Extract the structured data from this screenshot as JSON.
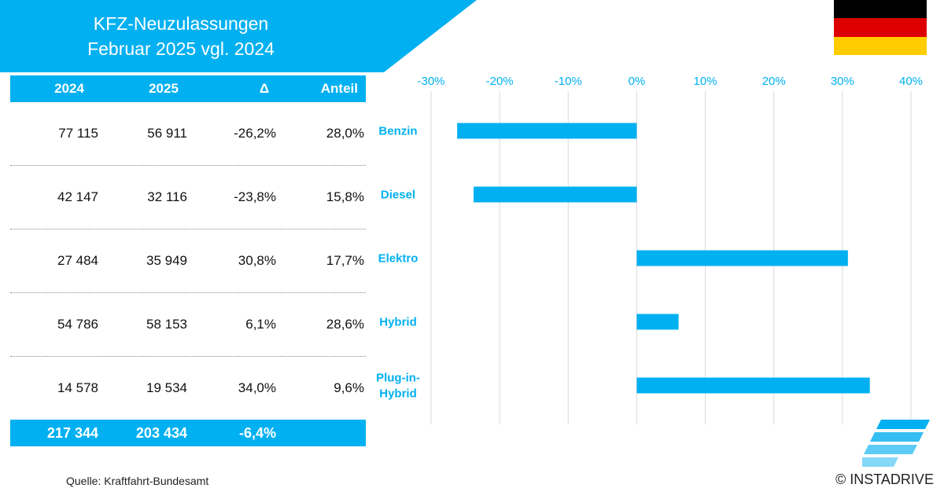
{
  "header": {
    "title_line1": "KFZ-Neuzulassungen",
    "title_line2": "Februar 2025 vgl. 2024"
  },
  "colors": {
    "accent": "#00b0f0",
    "flag_black": "#000000",
    "flag_red": "#dd0000",
    "flag_gold": "#ffcc00"
  },
  "table": {
    "headers": [
      "2024",
      "2025",
      "Δ",
      "Anteil"
    ],
    "rows": [
      [
        "77 115",
        "56 911",
        "-26,2%",
        "28,0%"
      ],
      [
        "42 147",
        "32 116",
        "-23,8%",
        "15,8%"
      ],
      [
        "27 484",
        "35 949",
        "30,8%",
        "17,7%"
      ],
      [
        "54 786",
        "58 153",
        "6,1%",
        "28,6%"
      ],
      [
        "14 578",
        "19 534",
        "34,0%",
        "9,6%"
      ]
    ],
    "total": [
      "217 344",
      "203 434",
      "-6,4%"
    ]
  },
  "chart_data": {
    "type": "bar",
    "orientation": "horizontal",
    "categories": [
      "Benzin",
      "Diesel",
      "Elektro",
      "Hybrid",
      "Plug-in-Hybrid"
    ],
    "values": [
      -26.2,
      -23.8,
      30.8,
      6.1,
      34.0
    ],
    "unit": "%",
    "xlim": [
      -30,
      40
    ],
    "x_ticks": [
      "-30%",
      "-20%",
      "-10%",
      "0%",
      "10%",
      "20%",
      "30%",
      "40%"
    ],
    "grid": true,
    "color": "#00b0f0"
  },
  "footer": {
    "source": "Quelle: Kraftfahrt-Bundesamt",
    "copyright": "© INSTADRIVE"
  }
}
